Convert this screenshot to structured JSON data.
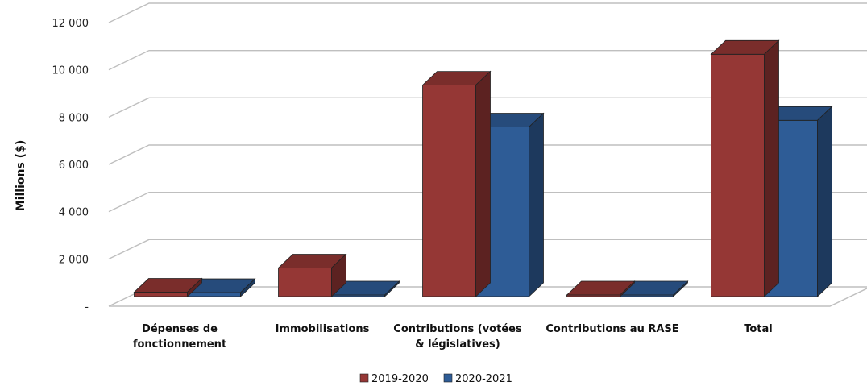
{
  "chart_data": {
    "type": "bar",
    "title": "",
    "xlabel": "",
    "ylabel": "Millions ($)",
    "ylim": [
      0,
      12000
    ],
    "ytick_values": [
      0,
      2000,
      4000,
      6000,
      8000,
      10000,
      12000
    ],
    "ytick_labels": [
      "-",
      "2 000",
      "4 000",
      "6 000",
      "8 000",
      "10 000",
      "12 000"
    ],
    "grid": true,
    "legend_position": "bottom",
    "categories": [
      [
        "Dépenses de",
        "fonctionnement"
      ],
      [
        "Immobilisations"
      ],
      [
        "Contributions (votées",
        "& législatives)"
      ],
      [
        "Contributions au RASE"
      ],
      [
        "Total"
      ]
    ],
    "series": [
      {
        "name": "2019-2020",
        "color": "#953735",
        "values": [
          200,
          1300,
          9600,
          50,
          11000
        ]
      },
      {
        "name": "2020-2021",
        "color": "#2E5C96",
        "values": [
          180,
          60,
          7700,
          30,
          8000
        ]
      }
    ]
  }
}
